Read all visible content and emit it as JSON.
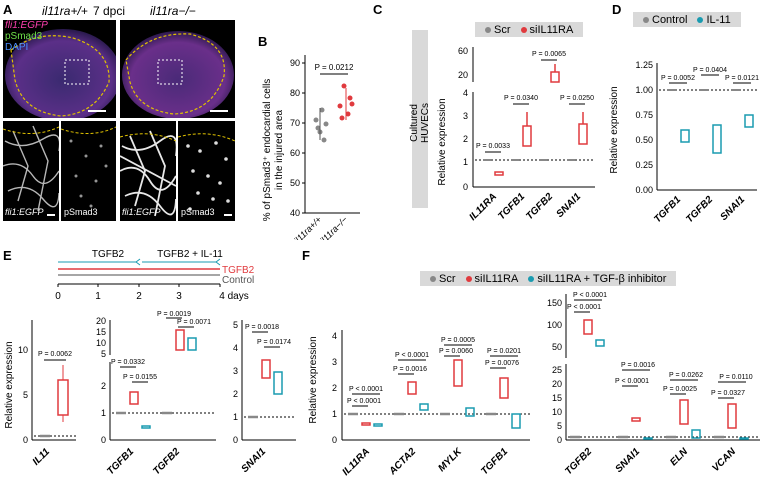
{
  "panels": {
    "A": {
      "label": "A",
      "geno_wt": "il11ra+/+",
      "geno_ko": "il11ra−/−",
      "timepoint": "7 dpci",
      "channel_egfp": "fli1:EGFP",
      "channel_psmad": "pSmad3",
      "channel_dapi": "DAPI",
      "sub_labels": [
        "fli1:EGFP",
        "pSmad3",
        "fli1:EGFP",
        "pSmad3"
      ]
    },
    "B": {
      "label": "B",
      "ylabel": "% of pSmad3+ endocardial cells in the injured area",
      "ylabel_line1": "% of pSmad3⁺ endocardial cells",
      "ylabel_line2": "in the injured area",
      "pvalue": "P = 0.0212",
      "yticks": [
        "40",
        "50",
        "60",
        "70",
        "80",
        "90"
      ],
      "xlabels": [
        "il11ra+/+",
        "il11ra−/−"
      ]
    },
    "C": {
      "label": "C",
      "side_label": "Cultured HUVECs",
      "legend": [
        "Scr",
        "siIL11RA"
      ],
      "ylabel": "Relative expression",
      "yticks_low": [
        "0",
        "1",
        "2",
        "3",
        "4"
      ],
      "yticks_high": [
        "20",
        "60"
      ],
      "xlabels": [
        "IL11RA",
        "TGFB1",
        "TGFB2",
        "SNAI1"
      ],
      "pvalues": [
        "P = 0.0033",
        "P = 0.0340",
        "P = 0.0065",
        "P = 0.0250"
      ]
    },
    "D": {
      "label": "D",
      "legend": [
        "Control",
        "IL-11"
      ],
      "ylabel": "Relative expression",
      "yticks": [
        "0.00",
        "0.25",
        "0.50",
        "0.75",
        "1.00",
        "1.25"
      ],
      "xlabels": [
        "TGFB1",
        "TGFB2",
        "SNAI1"
      ],
      "pvalues": [
        "P = 0.0052",
        "P = 0.0404",
        "P = 0.0121"
      ]
    },
    "E": {
      "label": "E",
      "timeline_seg1": "TGFB2",
      "timeline_seg2": "TGFB2 + IL-11",
      "line_tgfb2": "TGFB2",
      "line_control": "Control",
      "timeline_ticks": [
        "0",
        "1",
        "2",
        "3",
        "4 days"
      ],
      "ylabel": "Relative expression",
      "g1": {
        "gene": "IL11",
        "yticks": [
          "0",
          "5",
          "10"
        ],
        "pvalue": "P = 0.0062"
      },
      "g2": {
        "genes": [
          "TGFB1",
          "TGFB2"
        ],
        "yticks_low": [
          "0",
          "1",
          "2"
        ],
        "yticks_high": [
          "5",
          "10",
          "15",
          "20"
        ],
        "pvalues": [
          "P = 0.0332",
          "P = 0.0155",
          "P = 0.0019",
          "P = 0.0071"
        ]
      },
      "g3": {
        "gene": "SNAI1",
        "yticks": [
          "0",
          "1",
          "2",
          "3",
          "4",
          "5"
        ],
        "pvalues": [
          "P = 0.0018",
          "P = 0.0174"
        ]
      }
    },
    "F": {
      "label": "F",
      "legend": [
        "Scr",
        "siIL11RA",
        "siIL11RA + TGF-β inhibitor"
      ],
      "ylabel": "Relative expression",
      "left": {
        "genes": [
          "IL11RA",
          "ACTA2",
          "MYLK",
          "TGFB1"
        ],
        "yticks": [
          "0",
          "1",
          "2",
          "3",
          "4"
        ],
        "pvalues": [
          "P < 0.0001",
          "P < 0.0001",
          "P = 0.0016",
          "P < 0.0001",
          "P = 0.0060",
          "P = 0.0005",
          "P = 0.0076",
          "P = 0.0201"
        ]
      },
      "right": {
        "genes": [
          "TGFB2",
          "SNAI1",
          "ELN",
          "VCAN"
        ],
        "yticks_low": [
          "0",
          "5",
          "10",
          "15",
          "20",
          "25"
        ],
        "yticks_high": [
          "50",
          "100",
          "150"
        ],
        "pvalues": [
          "P < 0.0001",
          "P < 0.0001",
          "P < 0.0001",
          "P = 0.0016",
          "P = 0.0025",
          "P = 0.0262",
          "P = 0.0327",
          "P = 0.0110"
        ]
      }
    }
  },
  "colors": {
    "scr": "#888888",
    "treat": "#e03a3e",
    "inhib": "#1a9bb0",
    "grey_box": "#d9d9d9"
  }
}
